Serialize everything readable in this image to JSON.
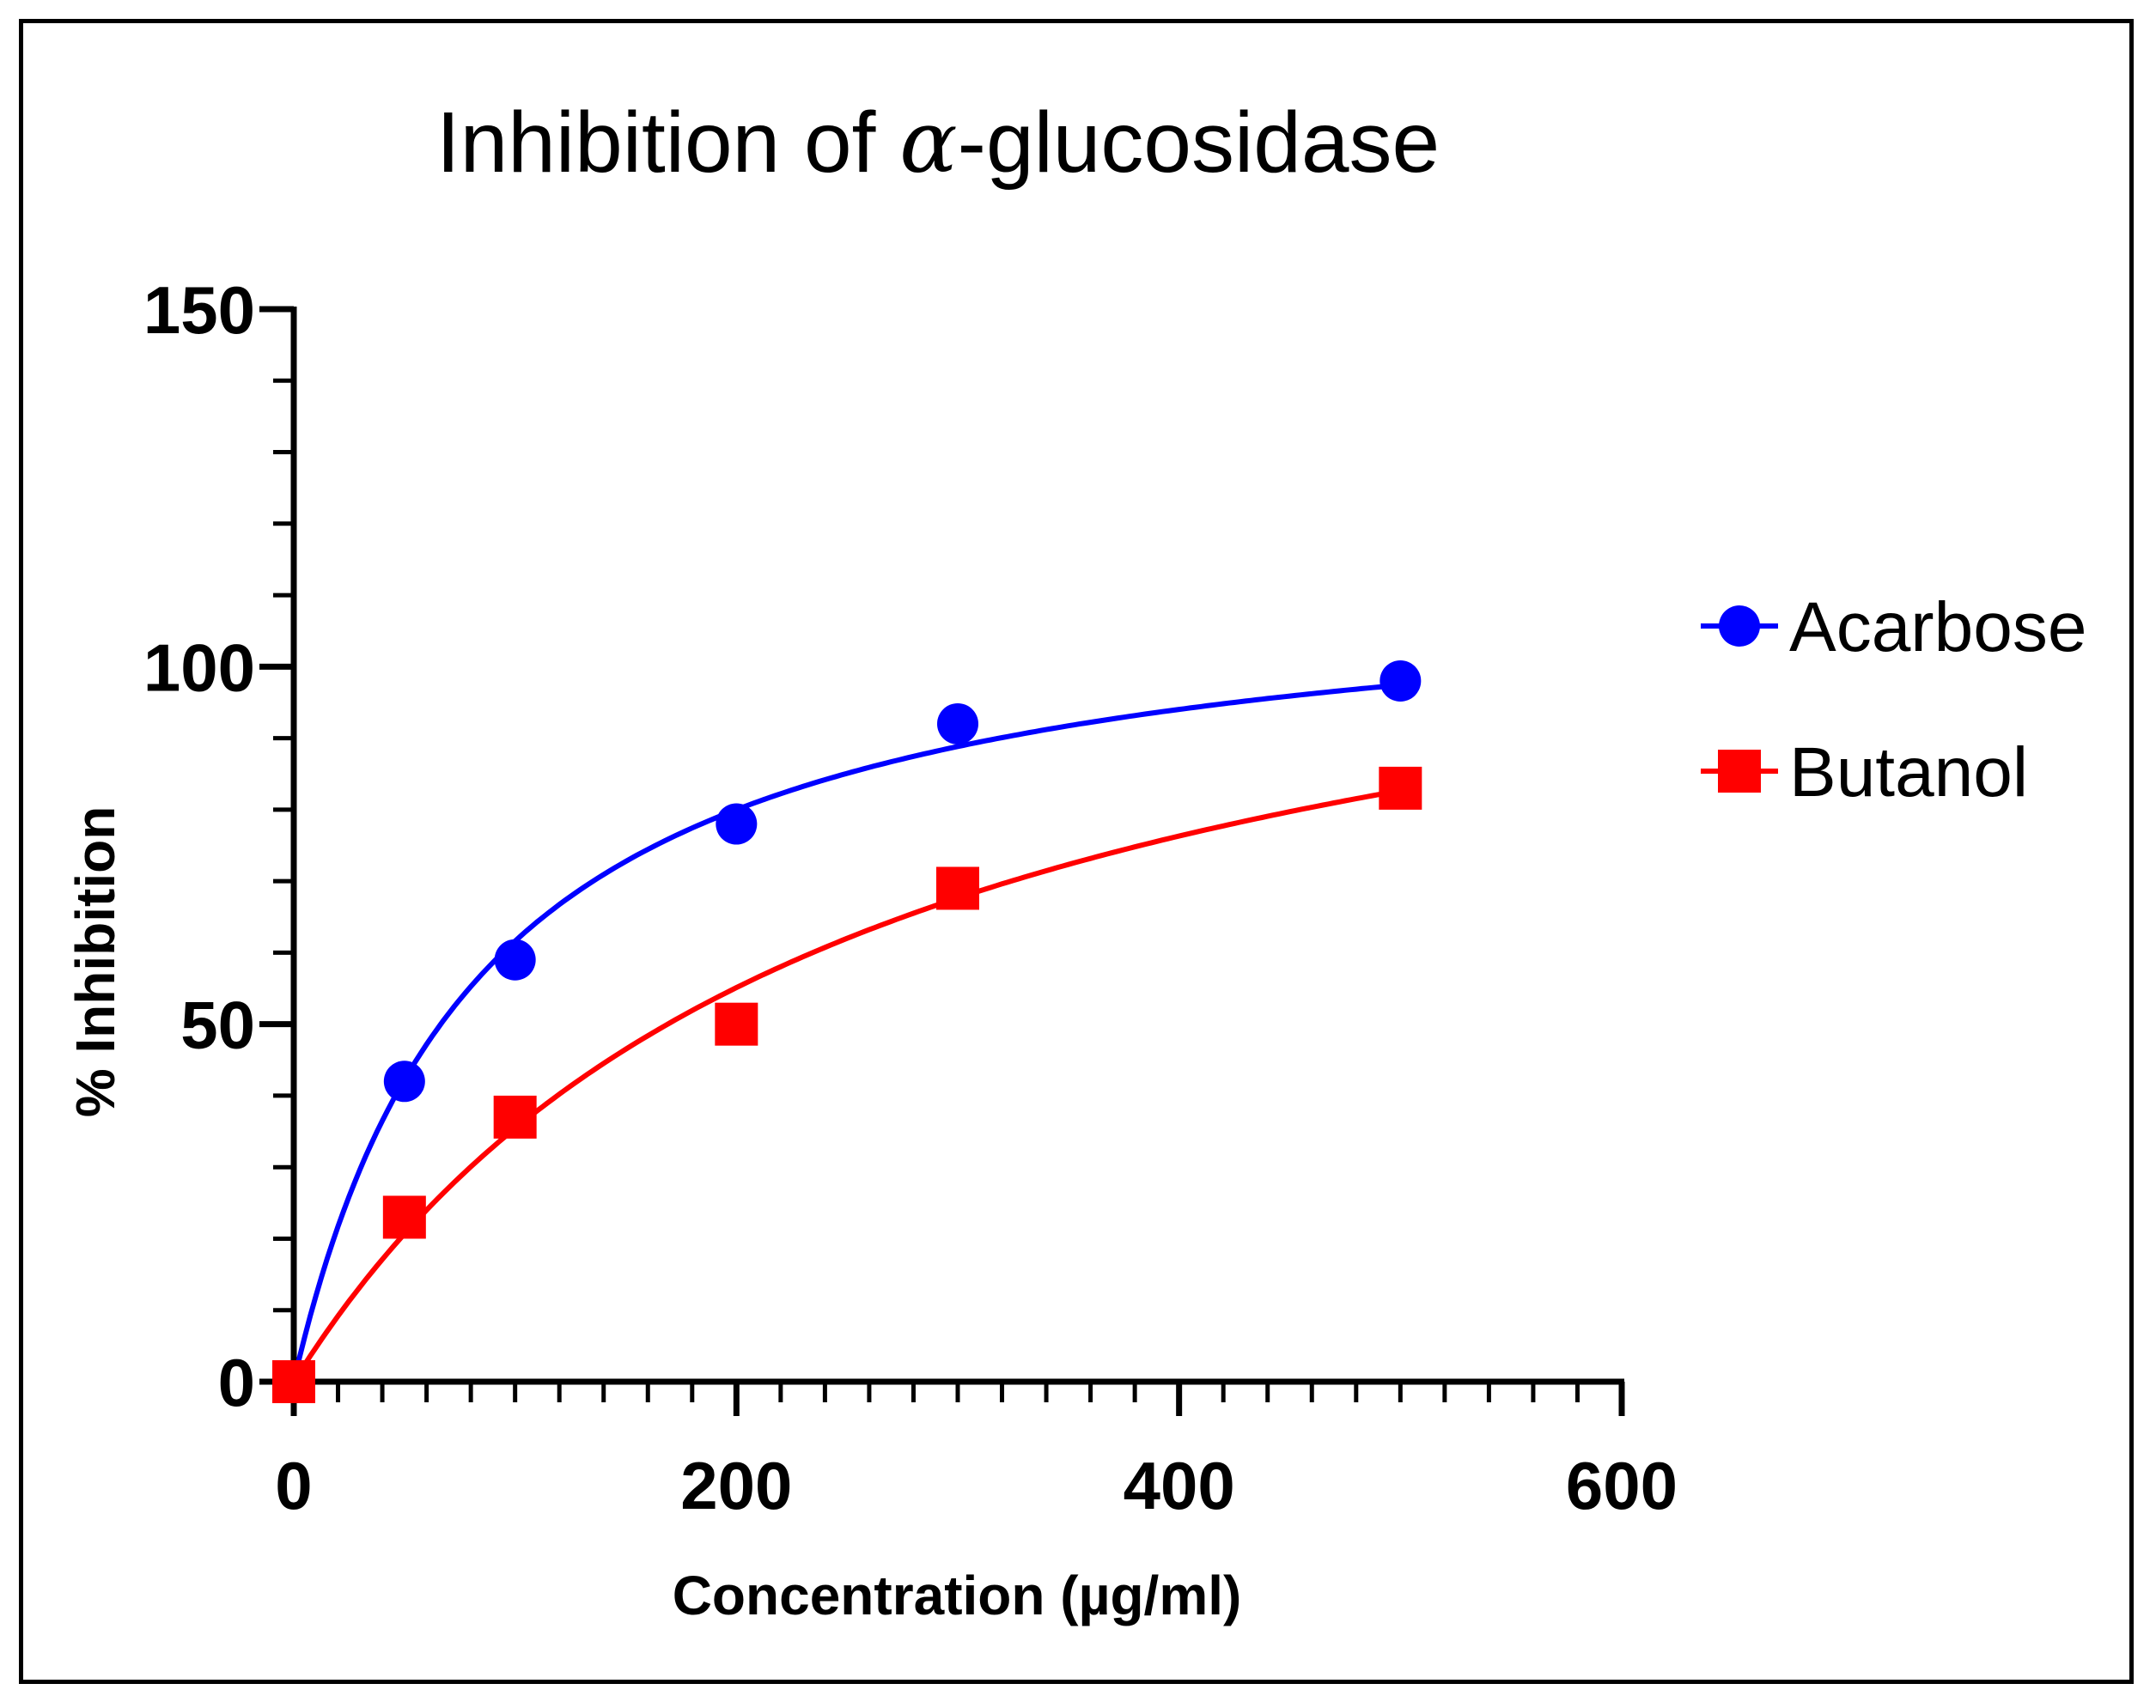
{
  "chart_data": {
    "type": "scatter",
    "title_prefix": "Inhibition of ",
    "title_symbol": "α",
    "title_suffix": "-glucosidase",
    "xlabel": "Concentration (µg/ml)",
    "ylabel": "% Inhibition",
    "xlim": [
      0,
      600
    ],
    "ylim": [
      0,
      150
    ],
    "x_ticks": [
      0,
      200,
      400,
      600
    ],
    "y_ticks": [
      0,
      50,
      100,
      150
    ],
    "x_minor_step": 20,
    "y_minor_step": 10,
    "grid": false,
    "legend_position": "right",
    "series": [
      {
        "name": "Acarbose",
        "marker": "circle",
        "color": "#0000ff",
        "x": [
          0,
          50,
          100,
          200,
          300,
          500
        ],
        "y": [
          0,
          42,
          59,
          78,
          92,
          98
        ],
        "fit": {
          "model": "one-site hyperbola",
          "bmax": 114,
          "kd": 85
        }
      },
      {
        "name": "Butanol",
        "marker": "square",
        "color": "#ff0000",
        "x": [
          0,
          50,
          100,
          200,
          300,
          500
        ],
        "y": [
          0,
          23,
          37,
          50,
          69,
          83
        ],
        "fit": {
          "model": "one-site hyperbola",
          "bmax": 124,
          "kd": 250
        }
      }
    ]
  }
}
